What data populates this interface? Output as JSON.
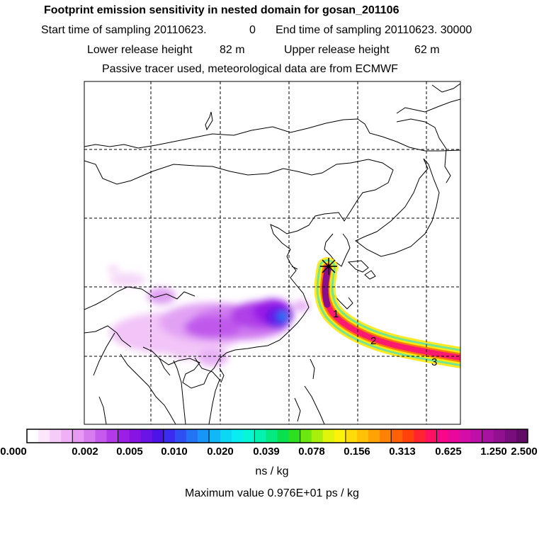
{
  "header": {
    "title": "Footprint emission sensitivity in nested domain for gosan_201106",
    "start_label": "Start time of sampling 20110623.",
    "start_value": "0",
    "end_label": "End time of sampling 20110623. 30000",
    "lower_label": "Lower release height",
    "lower_value": "82 m",
    "upper_label": "Upper release height",
    "upper_value": "62 m",
    "tracer_info": "Passive tracer used, meteorological data are from ECMWF"
  },
  "map": {
    "trajectory_labels": [
      "1",
      "2",
      "3"
    ]
  },
  "colorbar": {
    "tick_labels": [
      "0.000",
      "0.002",
      "0.005",
      "0.010",
      "0.020",
      "0.039",
      "0.078",
      "0.156",
      "0.313",
      "0.625",
      "1.250",
      "2.500"
    ],
    "colors": [
      "#ffffff",
      "#fbe6fb",
      "#f5ccf7",
      "#f0b0f5",
      "#e89af2",
      "#d77cef",
      "#c55aec",
      "#b23ae8",
      "#9d1ee6",
      "#8814e4",
      "#6a14e6",
      "#4d14e8",
      "#3c2cf0",
      "#2e50f2",
      "#2274f4",
      "#1696f6",
      "#10b8f6",
      "#0cd8f4",
      "#08eef0",
      "#06f6d6",
      "#04f2b0",
      "#04ea80",
      "#08e050",
      "#2ce020",
      "#6ce810",
      "#a8f00c",
      "#e0f40c",
      "#fff20a",
      "#ffdc08",
      "#ffc206",
      "#ffa204",
      "#ff8204",
      "#ff6206",
      "#ff420c",
      "#ff2430",
      "#ff1060",
      "#f80888",
      "#e8089c",
      "#d40ca8",
      "#be10a8",
      "#a812a0",
      "#901090",
      "#780e7c",
      "#600c66"
    ]
  },
  "units": "ns / kg",
  "max_value": "Maximum value  0.976E+01 ps / kg"
}
